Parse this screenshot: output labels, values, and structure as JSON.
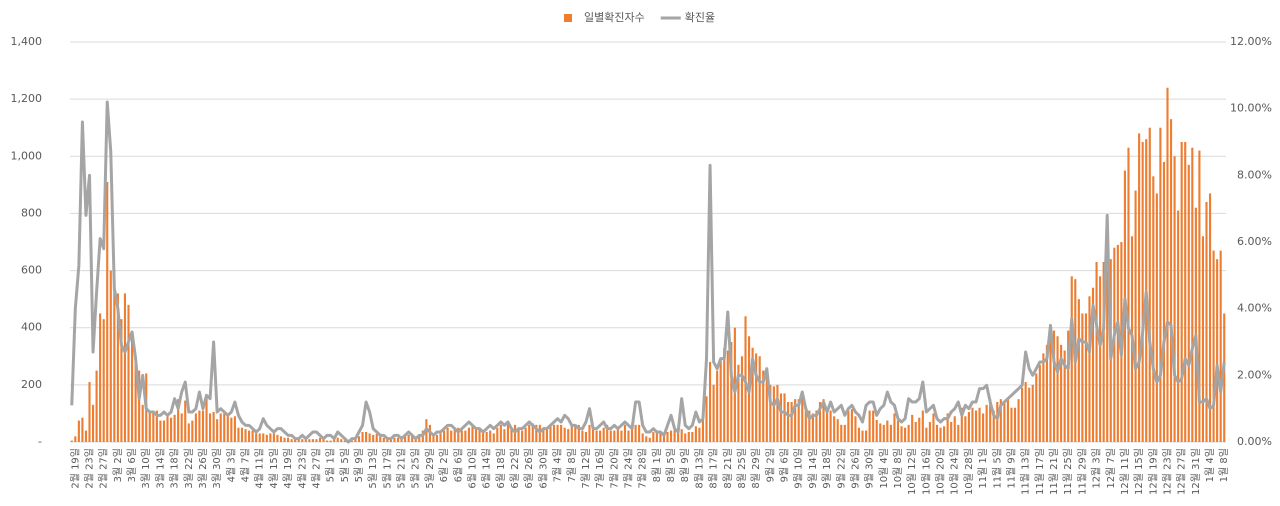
{
  "chart_data": {
    "type": "bar",
    "categories": [
      null,
      "2월 19일",
      null,
      null,
      null,
      "2월 23일",
      null,
      null,
      null,
      "2월 27일",
      null,
      null,
      null,
      "3월 2일",
      null,
      null,
      null,
      "3월 6일",
      null,
      null,
      null,
      "3월 10일",
      null,
      null,
      null,
      "3월 14일",
      null,
      null,
      null,
      "3월 18일",
      null,
      null,
      null,
      "3월 22일",
      null,
      null,
      null,
      "3월 26일",
      null,
      null,
      null,
      "3월 30일",
      null,
      null,
      null,
      "4월 3일",
      null,
      null,
      null,
      "4월 7일",
      null,
      null,
      null,
      "4월 11일",
      null,
      null,
      null,
      "4월 15일",
      null,
      null,
      null,
      "4월 19일",
      null,
      null,
      null,
      "4월 23일",
      null,
      null,
      null,
      "4월 27일",
      null,
      null,
      null,
      "5월 1일",
      null,
      null,
      null,
      "5월 5일",
      null,
      null,
      null,
      "5월 9일",
      null,
      null,
      null,
      "5월 13일",
      null,
      null,
      null,
      "5월 17일",
      null,
      null,
      null,
      "5월 21일",
      null,
      null,
      null,
      "5월 25일",
      null,
      null,
      null,
      "5월 29일",
      null,
      null,
      null,
      "6월 2일",
      null,
      null,
      null,
      "6월 6일",
      null,
      null,
      null,
      "6월 10일",
      null,
      null,
      null,
      "6월 14일",
      null,
      null,
      null,
      "6월 18일",
      null,
      null,
      null,
      "6월 22일",
      null,
      null,
      null,
      "6월 26일",
      null,
      null,
      null,
      "6월 30일",
      null,
      null,
      null,
      "7월 4일",
      null,
      null,
      null,
      "7월 8일",
      null,
      null,
      null,
      "7월 12일",
      null,
      null,
      null,
      "7월 16일",
      null,
      null,
      null,
      "7월 20일",
      null,
      null,
      null,
      "7월 24일",
      null,
      null,
      null,
      "7월 28일",
      null,
      null,
      null,
      "8월 1일",
      null,
      null,
      null,
      "8월 5일",
      null,
      null,
      null,
      "8월 9일",
      null,
      null,
      null,
      "8월 13일",
      null,
      null,
      null,
      "8월 17일",
      null,
      null,
      null,
      "8월 21일",
      null,
      null,
      null,
      "8월 25일",
      null,
      null,
      null,
      "8월 29일",
      null,
      null,
      null,
      "9월 2일",
      null,
      null,
      null,
      "9월 6일",
      null,
      null,
      null,
      "9월 10일",
      null,
      null,
      null,
      "9월 14일",
      null,
      null,
      null,
      "9월 18일",
      null,
      null,
      null,
      "9월 22일",
      null,
      null,
      null,
      "9월 26일",
      null,
      null,
      null,
      "9월 30일",
      null,
      null,
      null,
      "10월 4일",
      null,
      null,
      null,
      "10월 8일",
      null,
      null,
      null,
      "10월 12일",
      null,
      null,
      null,
      "10월 16일",
      null,
      null,
      null,
      "10월 20일",
      null,
      null,
      null,
      "10월 24일",
      null,
      null,
      null,
      "10월 28일",
      null,
      null,
      null,
      "11월 1일",
      null,
      null,
      null,
      "11월 5일",
      null,
      null,
      null,
      "11월 9일",
      null,
      null,
      null,
      "11월 13일",
      null,
      null,
      null,
      "11월 17일",
      null,
      null,
      null,
      "11월 21일",
      null,
      null,
      null,
      "11월 25일",
      null,
      null,
      null,
      "11월 29일",
      null,
      null,
      null,
      "12월 3일",
      null,
      null,
      null,
      "12월 7일",
      null,
      null,
      null,
      "12월 11일",
      null,
      null,
      null,
      "12월 15일",
      null,
      null,
      null,
      "12월 19일",
      null,
      null,
      null,
      "12월 23일",
      null,
      null,
      null,
      "12월 27일",
      null,
      null,
      null,
      "12월 31일",
      null,
      null,
      null,
      "1월 4일",
      null,
      null,
      null,
      "1월 8일"
    ],
    "series": [
      {
        "name": "일별확진자수",
        "type": "bar",
        "color": "#ed7d31",
        "values": [
          5,
          20,
          75,
          85,
          40,
          210,
          130,
          250,
          450,
          430,
          910,
          600,
          600,
          520,
          430,
          520,
          480,
          370,
          300,
          250,
          130,
          240,
          110,
          110,
          110,
          75,
          75,
          90,
          85,
          95,
          150,
          100,
          145,
          65,
          75,
          100,
          110,
          110,
          160,
          100,
          105,
          80,
          100,
          100,
          90,
          85,
          90,
          50,
          50,
          45,
          40,
          40,
          30,
          30,
          30,
          25,
          30,
          30,
          25,
          20,
          15,
          15,
          10,
          10,
          10,
          10,
          8,
          10,
          10,
          10,
          15,
          10,
          5,
          5,
          10,
          15,
          10,
          5,
          2,
          5,
          10,
          20,
          35,
          35,
          30,
          25,
          28,
          25,
          15,
          15,
          15,
          15,
          15,
          20,
          20,
          25,
          25,
          15,
          20,
          40,
          80,
          60,
          30,
          25,
          30,
          40,
          50,
          40,
          50,
          50,
          40,
          40,
          50,
          55,
          45,
          50,
          40,
          35,
          40,
          30,
          50,
          60,
          45,
          65,
          45,
          60,
          50,
          40,
          50,
          60,
          65,
          60,
          60,
          50,
          50,
          55,
          60,
          60,
          60,
          50,
          45,
          60,
          60,
          60,
          40,
          35,
          60,
          45,
          40,
          40,
          50,
          60,
          40,
          40,
          50,
          40,
          60,
          40,
          50,
          60,
          60,
          30,
          20,
          15,
          35,
          35,
          30,
          25,
          35,
          40,
          45,
          35,
          45,
          30,
          35,
          35,
          55,
          50,
          100,
          160,
          280,
          200,
          250,
          290,
          330,
          320,
          350,
          400,
          270,
          300,
          440,
          370,
          330,
          310,
          300,
          250,
          260,
          200,
          195,
          200,
          170,
          170,
          140,
          140,
          150,
          150,
          170,
          120,
          110,
          100,
          110,
          140,
          150,
          110,
          110,
          90,
          80,
          60,
          60,
          110,
          115,
          90,
          50,
          40,
          40,
          110,
          110,
          77,
          65,
          60,
          75,
          60,
          100,
          75,
          55,
          50,
          60,
          95,
          70,
          85,
          110,
          50,
          70,
          100,
          60,
          50,
          55,
          100,
          70,
          90,
          60,
          120,
          90,
          105,
          120,
          110,
          120,
          100,
          130,
          150,
          110,
          140,
          150,
          140,
          150,
          120,
          120,
          150,
          190,
          210,
          190,
          200,
          240,
          270,
          310,
          340,
          370,
          390,
          370,
          340,
          320,
          390,
          580,
          570,
          500,
          450,
          450,
          510,
          540,
          630,
          580,
          630,
          610,
          640,
          680,
          690,
          700,
          950,
          1030,
          720,
          880,
          1080,
          1050,
          1060,
          1100,
          930,
          870,
          1100,
          980,
          1240,
          1130,
          1000,
          810,
          1050,
          1050,
          970,
          1030,
          820,
          1020,
          720,
          840,
          870,
          670,
          640,
          670,
          450
        ]
      },
      {
        "name": "확진율",
        "type": "line",
        "axis": "y2",
        "color": "#a5a5a5",
        "values": [
          1.1,
          4,
          5.3,
          9.6,
          6.8,
          8,
          2.7,
          4.5,
          6.1,
          5.8,
          10.2,
          8.7,
          4.6,
          4,
          2.9,
          2.7,
          3,
          3.3,
          2.5,
          1.3,
          2,
          1,
          0.9,
          0.9,
          0.8,
          0.8,
          0.9,
          0.8,
          0.9,
          1.3,
          1,
          1.5,
          1.8,
          0.9,
          0.9,
          1,
          1.5,
          1,
          1.4,
          1.3,
          3,
          0.9,
          1,
          0.9,
          0.8,
          0.9,
          1.2,
          0.8,
          0.6,
          0.5,
          0.5,
          0.4,
          0.3,
          0.4,
          0.7,
          0.5,
          0.4,
          0.3,
          0.4,
          0.4,
          0.3,
          0.2,
          0.2,
          0.1,
          0.1,
          0.2,
          0.1,
          0.2,
          0.3,
          0.3,
          0.2,
          0.1,
          0.2,
          0.2,
          0.1,
          0.3,
          0.2,
          0.1,
          0,
          0.1,
          0.1,
          0.3,
          0.5,
          1.2,
          0.9,
          0.4,
          0.3,
          0.2,
          0.2,
          0.1,
          0.1,
          0.2,
          0.2,
          0.1,
          0.2,
          0.3,
          0.2,
          0.1,
          0.2,
          0.2,
          0.4,
          0.3,
          0.2,
          0.3,
          0.3,
          0.4,
          0.5,
          0.5,
          0.4,
          0.3,
          0.4,
          0.5,
          0.6,
          0.5,
          0.4,
          0.4,
          0.3,
          0.4,
          0.5,
          0.4,
          0.5,
          0.6,
          0.5,
          0.6,
          0.4,
          0.3,
          0.4,
          0.4,
          0.5,
          0.6,
          0.5,
          0.4,
          0.3,
          0.4,
          0.4,
          0.5,
          0.6,
          0.7,
          0.6,
          0.8,
          0.7,
          0.5,
          0.5,
          0.4,
          0.4,
          0.6,
          1,
          0.4,
          0.4,
          0.5,
          0.6,
          0.4,
          0.4,
          0.5,
          0.4,
          0.5,
          0.6,
          0.5,
          0.4,
          1.2,
          1.2,
          0.5,
          0.3,
          0.3,
          0.4,
          0.3,
          0.3,
          0.2,
          0.5,
          0.8,
          0.4,
          0.3,
          1.3,
          0.5,
          0.4,
          0.5,
          0.9,
          0.6,
          0.7,
          2.5,
          8.3,
          2.4,
          2.2,
          2.5,
          2.5,
          3.9,
          2,
          1.5,
          2,
          2,
          1.8,
          1.5,
          2.5,
          2,
          1.8,
          1.8,
          2.2,
          1.2,
          1.1,
          1.3,
          0.9,
          0.9,
          0.8,
          0.8,
          1.1,
          1.1,
          1.5,
          1,
          0.7,
          0.8,
          0.8,
          1,
          1.2,
          0.9,
          1.2,
          0.9,
          1,
          1.1,
          0.8,
          1,
          1.1,
          0.9,
          0.8,
          0.6,
          1.1,
          1.2,
          1.2,
          0.8,
          1,
          1.1,
          1.5,
          1.2,
          1.1,
          0.7,
          0.6,
          0.7,
          1.3,
          1.2,
          1.2,
          1.3,
          1.8,
          0.9,
          1,
          1.1,
          0.7,
          0.6,
          0.7,
          0.7,
          0.9,
          1,
          1.2,
          0.8,
          1.1,
          1,
          1.2,
          1.2,
          1.6,
          1.6,
          1.7,
          1.2,
          0.8,
          0.7,
          1.1,
          1.2,
          1.3,
          1.4,
          1.5,
          1.6,
          1.7,
          2.7,
          2.2,
          2,
          2.2,
          2.4,
          2.4,
          2.5,
          3.5,
          2.4,
          2.1,
          2.5,
          2.3,
          2.2,
          3.7,
          2.4,
          3.1,
          3,
          3,
          2.7,
          4.1,
          3.5,
          2.9,
          3.4,
          6.8,
          2.5,
          3.2,
          3.6,
          2.6,
          4.3,
          3.4,
          3.2,
          2.2,
          2.4,
          3.3,
          4.5,
          3,
          2.2,
          1.8,
          2,
          3,
          3.6,
          3.5,
          2,
          1.8,
          1.9,
          2.5,
          2.3,
          2.8,
          3.2,
          1.2,
          1.2,
          1.3,
          1,
          1.1,
          2.3,
          1.5,
          2.4
        ]
      }
    ],
    "ylim": [
      0,
      1400
    ],
    "yticks": [
      {
        "value": 0,
        "label": "-"
      },
      200,
      400,
      600,
      800,
      {
        "value": 1000,
        "label": "1,000"
      },
      {
        "value": 1200,
        "label": "1,200"
      },
      {
        "value": 1400,
        "label": "1,400"
      }
    ],
    "y2lim": [
      0,
      12
    ],
    "y2ticks": [
      {
        "value": 0,
        "label": "0.00%"
      },
      {
        "value": 2,
        "label": "2.00%"
      },
      {
        "value": 4,
        "label": "4.00%"
      },
      {
        "value": 6,
        "label": "6.00%"
      },
      {
        "value": 8,
        "label": "8.00%"
      },
      {
        "value": 10,
        "label": "10.00%"
      },
      {
        "value": 12,
        "label": "12.00%"
      }
    ],
    "grid": true,
    "legend": "top"
  }
}
